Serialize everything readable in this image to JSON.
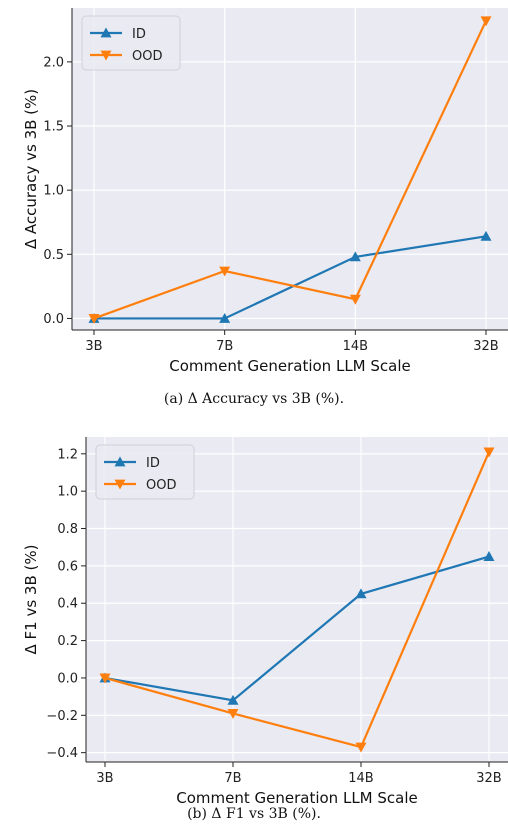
{
  "chart_data": [
    {
      "type": "line",
      "categories": [
        "3B",
        "7B",
        "14B",
        "32B"
      ],
      "series": [
        {
          "name": "ID",
          "values": [
            0.0,
            0.0,
            0.48,
            0.64
          ],
          "color": "#1f77b4",
          "marker": "triangle-up"
        },
        {
          "name": "OOD",
          "values": [
            0.0,
            0.37,
            0.15,
            2.32
          ],
          "color": "#ff7f0e",
          "marker": "triangle-down"
        }
      ],
      "xlabel": "Comment Generation LLM Scale",
      "ylabel": "Δ Accuracy vs 3B (%)",
      "ylim": [
        -0.09,
        2.42
      ],
      "yticks": [
        "0.0",
        "0.5",
        "1.0",
        "1.5",
        "2.0"
      ],
      "legend": "top-left",
      "grid": true,
      "caption": "(a)  Δ Accuracy vs 3B (%)."
    },
    {
      "type": "line",
      "categories": [
        "3B",
        "7B",
        "14B",
        "32B"
      ],
      "series": [
        {
          "name": "ID",
          "values": [
            0.0,
            -0.12,
            0.45,
            0.65
          ],
          "color": "#1f77b4",
          "marker": "triangle-up"
        },
        {
          "name": "OOD",
          "values": [
            0.0,
            -0.19,
            -0.37,
            1.21
          ],
          "color": "#ff7f0e",
          "marker": "triangle-down"
        }
      ],
      "xlabel": "Comment Generation LLM Scale",
      "ylabel": "Δ F1 vs 3B (%)",
      "ylim": [
        -0.45,
        1.29
      ],
      "yticks": [
        "−0.4",
        "−0.2",
        "0.0",
        "0.2",
        "0.4",
        "0.6",
        "0.8",
        "1.0",
        "1.2"
      ],
      "legend": "top-left",
      "grid": true,
      "caption": "(b)  Δ F1 vs 3B (%)."
    }
  ]
}
